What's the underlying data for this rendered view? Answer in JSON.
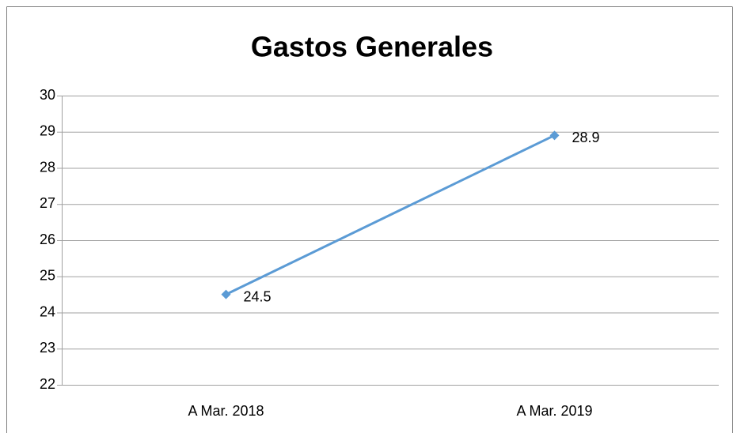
{
  "chart_data": {
    "type": "line",
    "title": "Gastos Generales",
    "categories": [
      "A Mar. 2018",
      "A Mar. 2019"
    ],
    "series": [
      {
        "name": "Gastos Generales",
        "color": "#5b9bd5",
        "values": [
          24.5,
          28.9
        ]
      }
    ],
    "ylim": [
      22,
      30
    ],
    "yticks": [
      22,
      23,
      24,
      25,
      26,
      27,
      28,
      29,
      30
    ],
    "grid": true,
    "data_labels": true
  }
}
